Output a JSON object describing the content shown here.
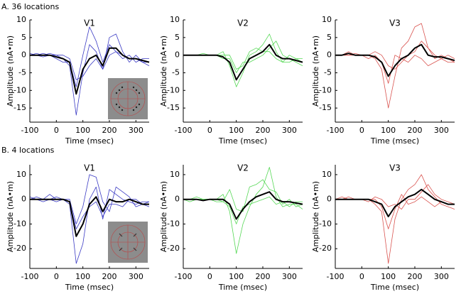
{
  "panel_labels": [
    "A. 36 locations",
    "B. 4 locations"
  ],
  "chart_data": [
    {
      "type": "line",
      "title": "V1",
      "xlabel": "Time (msec)",
      "ylabel": "Amplitude (nA•m)",
      "xlim": [
        -100,
        350
      ],
      "ylim": [
        -19,
        10
      ],
      "xticks": [
        -100,
        0,
        100,
        200,
        300
      ],
      "yticks": [
        -15,
        -10,
        -5,
        0,
        5,
        10
      ],
      "x": [
        -100,
        -75,
        -50,
        -25,
        0,
        25,
        50,
        75,
        100,
        125,
        150,
        175,
        200,
        225,
        250,
        275,
        300,
        325,
        350
      ],
      "series": [
        {
          "color": "#3a3ac4",
          "values": [
            0,
            0.5,
            0,
            0.5,
            0,
            -1,
            -3,
            -17,
            -5,
            3,
            1,
            -4,
            5,
            6,
            1,
            -2,
            0,
            -2,
            -3
          ]
        },
        {
          "color": "#3a3ac4",
          "values": [
            0,
            0,
            -0.5,
            0,
            -1,
            -2,
            -2,
            -9,
            0,
            8,
            4,
            -2,
            3,
            1,
            -1,
            0,
            -2,
            -1,
            -1
          ]
        },
        {
          "color": "#3a3ac4",
          "values": [
            0.5,
            0,
            0.5,
            0,
            0,
            0,
            -1,
            -7,
            -6,
            -3,
            -1,
            -4,
            0,
            1,
            0,
            -1,
            -1,
            -2,
            -2
          ]
        },
        {
          "color": "#000000",
          "values": [
            0,
            0,
            0,
            0,
            -0.5,
            -1,
            -2,
            -11,
            -4,
            -1,
            0,
            -3,
            2,
            2,
            0,
            -1,
            -1,
            -1.5,
            -2
          ]
        }
      ]
    },
    {
      "type": "line",
      "title": "V2",
      "xlabel": "Time (msec)",
      "ylabel": "Amplitude (nA•m)",
      "xlim": [
        -100,
        350
      ],
      "ylim": [
        -19,
        10
      ],
      "xticks": [
        -100,
        0,
        100,
        200,
        300
      ],
      "yticks": [
        -15,
        -10,
        -5,
        0,
        5,
        10
      ],
      "x": [
        -100,
        -75,
        -50,
        -25,
        0,
        25,
        50,
        75,
        100,
        125,
        150,
        175,
        200,
        225,
        250,
        275,
        300,
        325,
        350
      ],
      "series": [
        {
          "color": "#55d855",
          "values": [
            0,
            0,
            0,
            0.5,
            0,
            0,
            1,
            -3,
            -9,
            -5,
            0,
            1,
            3,
            6,
            1,
            -2,
            -2,
            -1,
            -2
          ]
        },
        {
          "color": "#55d855",
          "values": [
            0,
            0,
            0,
            0,
            0,
            0,
            -1,
            -1,
            -5,
            -2,
            -2,
            -1,
            0,
            2,
            4,
            0,
            -1,
            -2,
            -3
          ]
        },
        {
          "color": "#55d855",
          "values": [
            0,
            0,
            0,
            0,
            0,
            0,
            0,
            0,
            -4,
            -3,
            1,
            2,
            1,
            1,
            -1,
            -2,
            0,
            -1,
            -1
          ]
        },
        {
          "color": "#000000",
          "values": [
            0,
            0,
            0,
            0,
            0,
            0,
            -0.5,
            -2,
            -7,
            -4,
            -1,
            0,
            1,
            3,
            0,
            -1,
            -1,
            -1.5,
            -2
          ]
        }
      ]
    },
    {
      "type": "line",
      "title": "V3",
      "xlabel": "Time (msec)",
      "ylabel": "Amplitude (nA•m)",
      "xlim": [
        -100,
        350
      ],
      "ylim": [
        -19,
        10
      ],
      "xticks": [
        -100,
        0,
        100,
        200,
        300
      ],
      "yticks": [
        -15,
        -10,
        -5,
        0,
        5,
        10
      ],
      "x": [
        -100,
        -75,
        -50,
        -25,
        0,
        25,
        50,
        75,
        100,
        125,
        150,
        175,
        200,
        225,
        250,
        275,
        300,
        325,
        350
      ],
      "series": [
        {
          "color": "#d9534f",
          "values": [
            0,
            0,
            1,
            0,
            0,
            0,
            -1,
            -4,
            -15,
            -6,
            2,
            4,
            8,
            9,
            2,
            0,
            -1,
            -2,
            -2
          ]
        },
        {
          "color": "#d9534f",
          "values": [
            0,
            0,
            0,
            0.5,
            0,
            0,
            1,
            0,
            -3,
            -4,
            -2,
            0,
            1,
            4,
            2,
            -1,
            0,
            -1,
            -2
          ]
        },
        {
          "color": "#d9534f",
          "values": [
            0,
            0,
            0,
            0,
            0,
            -1,
            0,
            -2,
            -8,
            0,
            -1,
            -2,
            0,
            -1,
            -3,
            -2,
            -1,
            0,
            -1
          ]
        },
        {
          "color": "#000000",
          "values": [
            0,
            0,
            0.5,
            0,
            0,
            0,
            -0.5,
            -2,
            -6,
            -3,
            -1,
            0,
            2,
            3,
            0,
            -0.5,
            -0.5,
            -1,
            -1.5
          ]
        }
      ]
    },
    {
      "type": "line",
      "title": "V1",
      "xlabel": "Time (msec)",
      "ylabel": "Amplitude (nA•m)",
      "xlim": [
        -100,
        350
      ],
      "ylim": [
        -28,
        14
      ],
      "xticks": [
        -100,
        0,
        100,
        200,
        300
      ],
      "yticks": [
        -20,
        -10,
        0,
        10
      ],
      "x": [
        -100,
        -75,
        -50,
        -25,
        0,
        25,
        50,
        75,
        100,
        125,
        150,
        175,
        200,
        225,
        250,
        275,
        300,
        325,
        350
      ],
      "series": [
        {
          "color": "#3a3ac4",
          "values": [
            0,
            1,
            0,
            2,
            0,
            0,
            -2,
            -26,
            -18,
            0,
            5,
            -8,
            4,
            2,
            0,
            -1,
            -2,
            -1,
            -1
          ]
        },
        {
          "color": "#3a3ac4",
          "values": [
            0,
            0,
            -1,
            0,
            1,
            0,
            0,
            -10,
            -3,
            10,
            9,
            -1,
            -5,
            5,
            3,
            1,
            -3,
            -2,
            -3
          ]
        },
        {
          "color": "#3a3ac4",
          "values": [
            1,
            0,
            0,
            0,
            -1,
            0,
            -1,
            -12,
            -7,
            -3,
            -1,
            -7,
            -2,
            -2,
            -3,
            0,
            0,
            -2,
            -1
          ]
        },
        {
          "color": "#000000",
          "values": [
            0,
            0,
            0,
            0,
            0,
            0,
            -1,
            -15,
            -10,
            -2,
            1,
            -5,
            0,
            -1,
            -1,
            0,
            -1,
            -2,
            -2
          ]
        }
      ]
    },
    {
      "type": "line",
      "title": "V2",
      "xlabel": "Time (msec)",
      "ylabel": "Amplitude (nA•m)",
      "xlim": [
        -100,
        350
      ],
      "ylim": [
        -28,
        14
      ],
      "xticks": [
        -100,
        0,
        100,
        200,
        300
      ],
      "yticks": [
        -20,
        -10,
        0,
        10
      ],
      "x": [
        -100,
        -75,
        -50,
        -25,
        0,
        25,
        50,
        75,
        100,
        125,
        150,
        175,
        200,
        225,
        250,
        275,
        300,
        325,
        350
      ],
      "series": [
        {
          "color": "#55d855",
          "values": [
            0,
            -1,
            0,
            0,
            0,
            0,
            2,
            -5,
            -22,
            -10,
            -3,
            2,
            5,
            13,
            1,
            -3,
            -2,
            -2,
            -4
          ]
        },
        {
          "color": "#55d855",
          "values": [
            0,
            0,
            1,
            0,
            0,
            -1,
            -1,
            4,
            -4,
            -5,
            5,
            6,
            8,
            4,
            3,
            -2,
            0,
            -3,
            -2
          ]
        },
        {
          "color": "#55d855",
          "values": [
            0,
            0,
            0,
            0,
            0,
            0,
            -1,
            -3,
            -10,
            -3,
            -2,
            -1,
            0,
            1,
            -2,
            -1,
            -3,
            -1,
            -1
          ]
        },
        {
          "color": "#000000",
          "values": [
            0,
            0,
            0,
            -0.5,
            0,
            0,
            0,
            -2,
            -8,
            -4,
            -1,
            1,
            2,
            3,
            0,
            -1,
            -1,
            -1.5,
            -2
          ]
        }
      ]
    },
    {
      "type": "line",
      "title": "V3",
      "xlabel": "Time (msec)",
      "ylabel": "Amplitude (nA•m)",
      "xlim": [
        -100,
        350
      ],
      "ylim": [
        -28,
        14
      ],
      "xticks": [
        -100,
        0,
        100,
        200,
        300
      ],
      "yticks": [
        -20,
        -10,
        0,
        10
      ],
      "x": [
        -100,
        -75,
        -50,
        -25,
        0,
        25,
        50,
        75,
        100,
        125,
        150,
        175,
        200,
        225,
        250,
        275,
        300,
        325,
        350
      ],
      "series": [
        {
          "color": "#d9534f",
          "values": [
            0,
            0,
            1,
            0,
            0,
            0,
            -2,
            -5,
            -26,
            -8,
            0,
            4,
            6,
            10,
            4,
            1,
            -2,
            -3,
            -4
          ]
        },
        {
          "color": "#d9534f",
          "values": [
            0,
            1,
            0,
            0,
            0,
            -1,
            1,
            0,
            -3,
            -2,
            -4,
            0,
            0,
            3,
            6,
            2,
            0,
            -1,
            -2
          ]
        },
        {
          "color": "#d9534f",
          "values": [
            0,
            0,
            0,
            0,
            0,
            0,
            0,
            -3,
            -12,
            -4,
            2,
            -2,
            -1,
            1,
            -1,
            -3,
            -1,
            -2,
            -2
          ]
        },
        {
          "color": "#000000",
          "values": [
            0,
            0,
            0,
            0,
            0,
            0,
            -1,
            -2,
            -7,
            -3,
            -1,
            1,
            2,
            4,
            2,
            0,
            -1,
            -2,
            -2
          ]
        }
      ]
    }
  ]
}
